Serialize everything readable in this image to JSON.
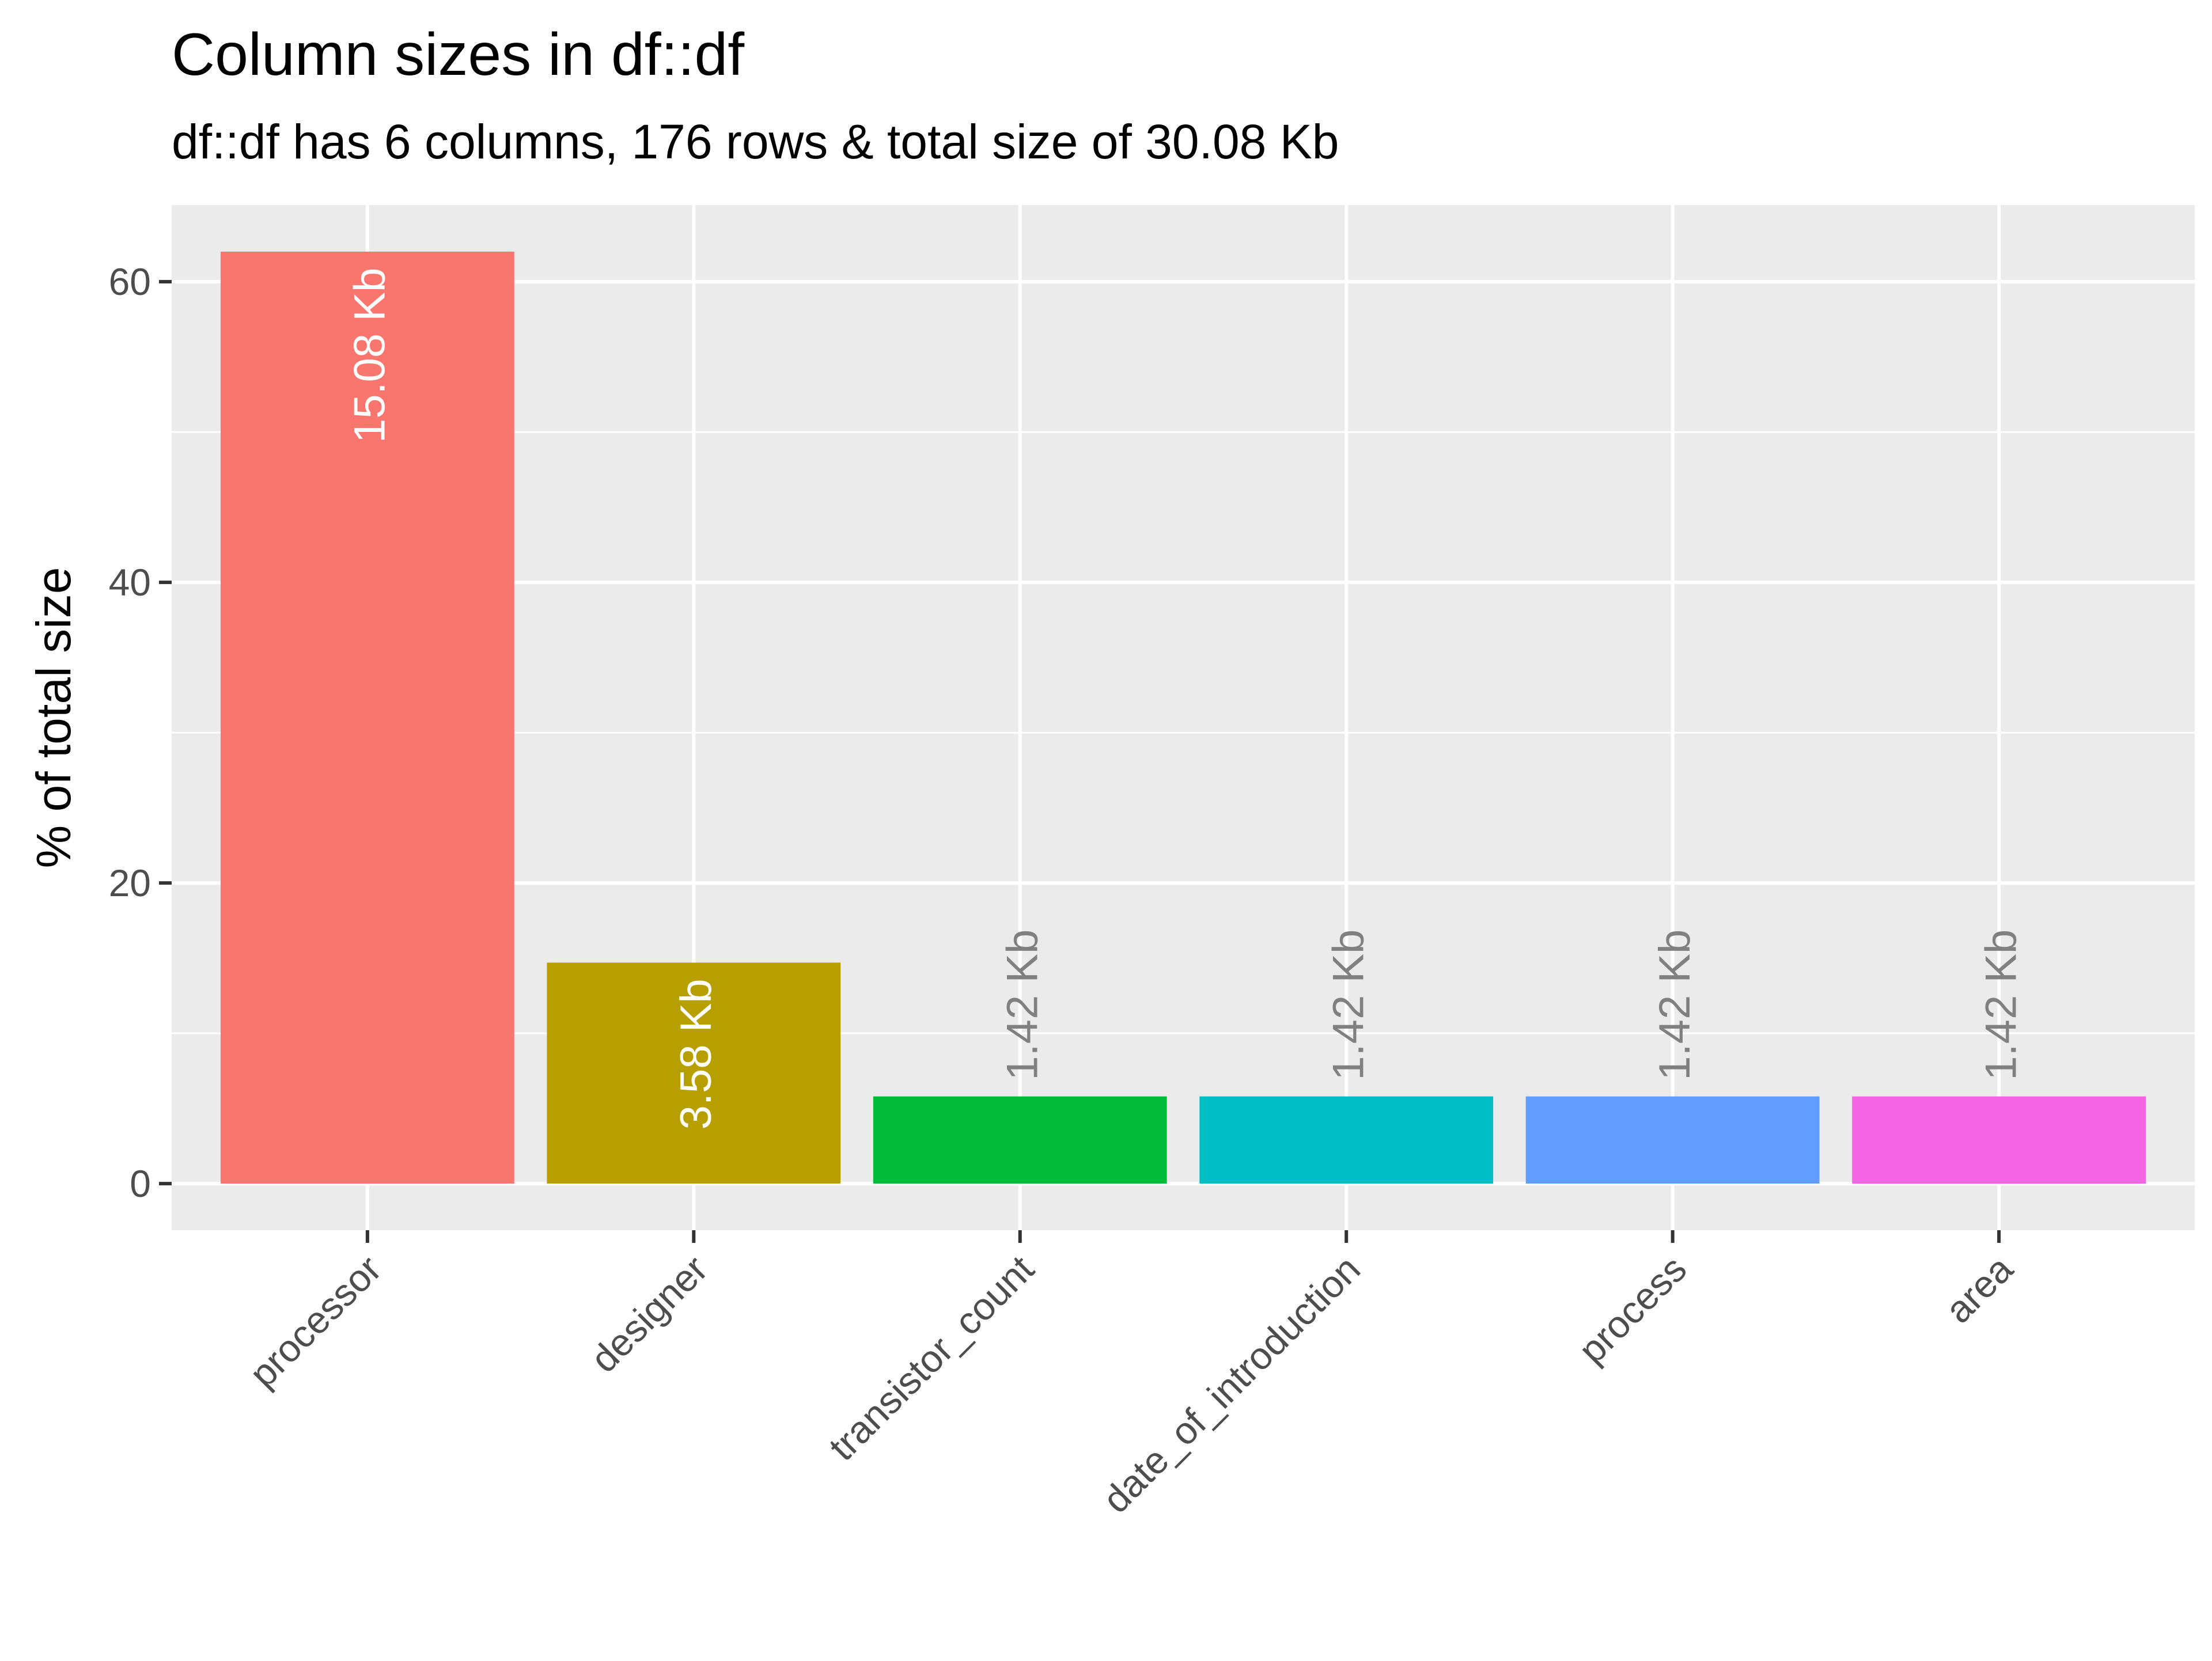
{
  "chart_data": {
    "type": "bar",
    "title": "Column sizes in df::df",
    "subtitle": "df::df has 6 columns, 176 rows & total size of 30.08 Kb",
    "xlabel": "",
    "ylabel": "% of total size",
    "categories": [
      "processor",
      "designer",
      "transistor_count",
      "date_of_introduction",
      "process",
      "area"
    ],
    "values": [
      62.0,
      14.7,
      5.8,
      5.8,
      5.8,
      5.8
    ],
    "bar_labels": [
      "15.08 Kb",
      "3.58 Kb",
      "1.42 Kb",
      "1.42 Kb",
      "1.42 Kb",
      "1.42 Kb"
    ],
    "label_inside": [
      true,
      true,
      false,
      false,
      false,
      false
    ],
    "colors": [
      "#F8766D",
      "#B79F00",
      "#00BA38",
      "#00BFC4",
      "#619CFF",
      "#F564E3"
    ],
    "yticks": [
      0,
      20,
      40,
      60
    ],
    "ylim": [
      -3.1,
      65.1
    ],
    "grid": true,
    "legend": "none"
  }
}
